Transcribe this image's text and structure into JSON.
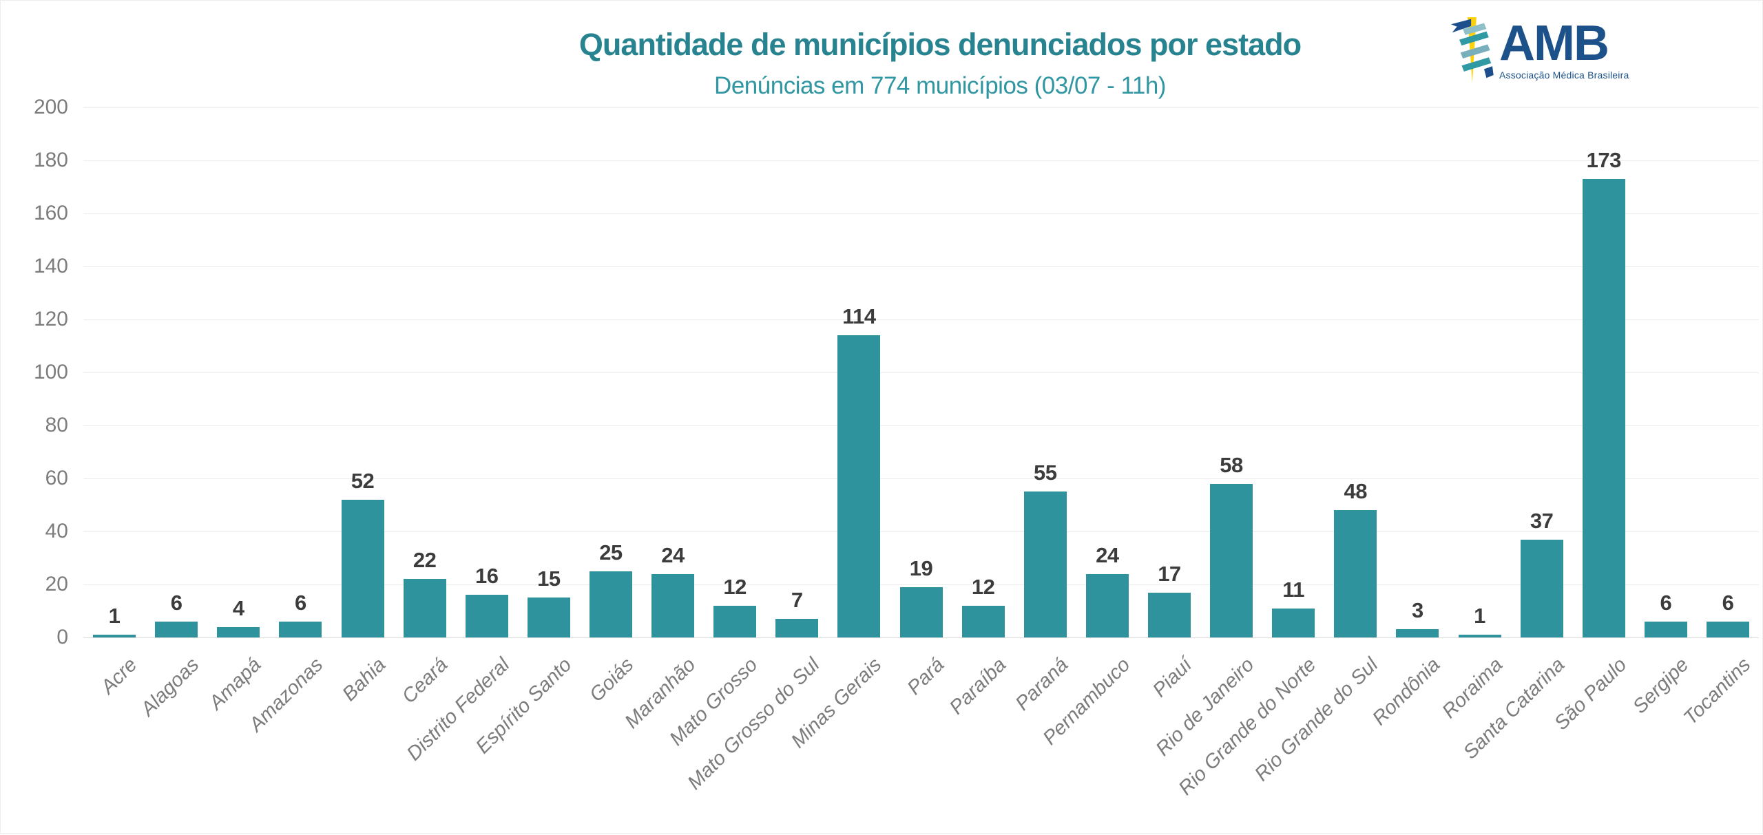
{
  "header": {
    "title": "Quantidade de municípios denunciados por estado",
    "subtitle": "Denúncias em 774 municípios (03/07 - 11h)"
  },
  "logo": {
    "acronym": "AMB",
    "name": "Associação Médica Brasileira",
    "icon": "caduceus-icon"
  },
  "colors": {
    "bar": "#2e939c",
    "title": "#26838f",
    "subtitle": "#2f96a2",
    "value_label": "#3c3c3c",
    "axis_label": "#7c7c7c",
    "gridline": "#ececec",
    "baseline": "#dcdcdc",
    "logo_navy": "#1d5189",
    "logo_gold": "#ffd10a",
    "logo_teal": "#2e919b"
  },
  "chart_data": {
    "type": "bar",
    "title": "Quantidade de municípios denunciados por estado",
    "subtitle": "Denúncias em 774 municípios (03/07 - 11h)",
    "categories": [
      "Acre",
      "Alagoas",
      "Amapá",
      "Amazonas",
      "Bahia",
      "Ceará",
      "Distrito Federal",
      "Espírito Santo",
      "Goiás",
      "Maranhão",
      "Mato Grosso",
      "Mato Grosso do Sul",
      "Minas Gerais",
      "Pará",
      "Paraíba",
      "Paraná",
      "Pernambuco",
      "Piauí",
      "Rio de Janeiro",
      "Rio Grande do Norte",
      "Rio Grande do Sul",
      "Rondônia",
      "Roraima",
      "Santa Catarina",
      "São Paulo",
      "Sergipe",
      "Tocantins"
    ],
    "values": [
      1,
      6,
      4,
      6,
      52,
      22,
      16,
      15,
      25,
      24,
      12,
      7,
      114,
      19,
      12,
      55,
      24,
      17,
      58,
      11,
      48,
      3,
      1,
      37,
      173,
      6,
      6
    ],
    "total": 774,
    "xlabel": "",
    "ylabel": "",
    "ylim": [
      0,
      200
    ],
    "ytick_step": 20,
    "yticks": [
      0,
      20,
      40,
      60,
      80,
      100,
      120,
      140,
      160,
      180,
      200
    ],
    "grid": "horizontal",
    "legend": "none",
    "bar_value_labels": true,
    "x_tick_rotation": -45
  }
}
